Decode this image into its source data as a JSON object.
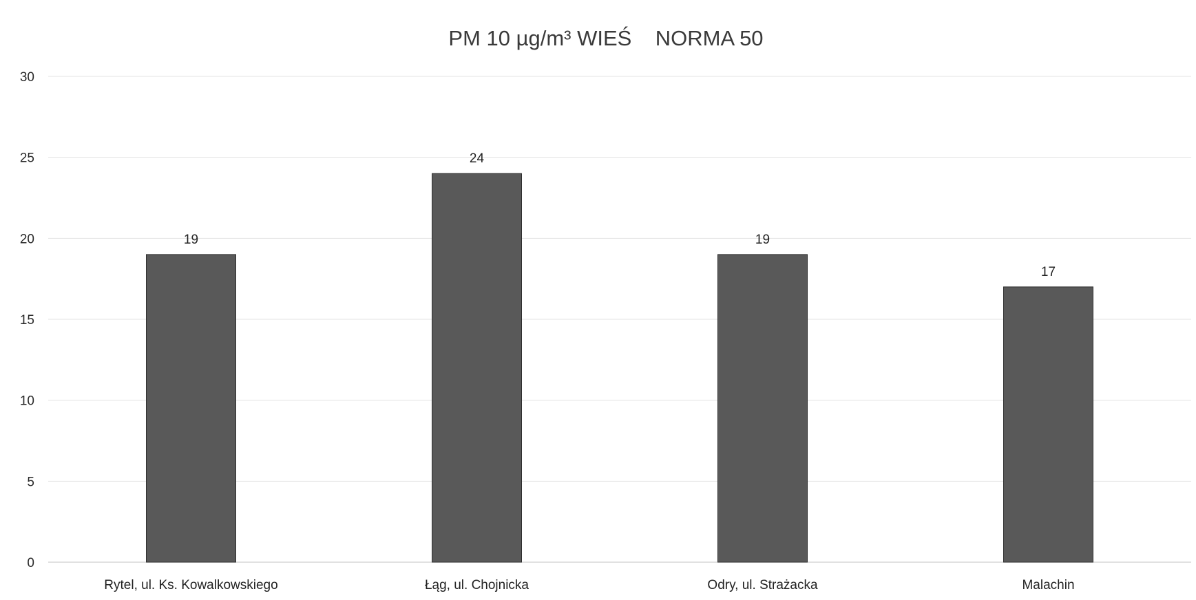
{
  "chart_data": {
    "type": "bar",
    "title": "PM 10 µg/m³ WIEŚ    NORMA 50",
    "xlabel": "",
    "ylabel": "",
    "categories": [
      "Rytel, ul. Ks. Kowalkowskiego",
      "Łąg, ul. Chojnicka",
      "Odry, ul. Strażacka",
      "Malachin"
    ],
    "values": [
      19,
      24,
      19,
      17
    ],
    "data_labels": [
      "19",
      "24",
      "19",
      "17"
    ],
    "ylim": [
      0,
      30
    ],
    "yticks": [
      0,
      5,
      10,
      15,
      20,
      25,
      30
    ],
    "ytick_labels": [
      "0",
      "5",
      "10",
      "15",
      "20",
      "25",
      "30"
    ],
    "grid": true,
    "legend": "none",
    "colors": {
      "bar": "#595959",
      "grid": "#e3e3e3",
      "text": "#2a2a2a"
    }
  }
}
